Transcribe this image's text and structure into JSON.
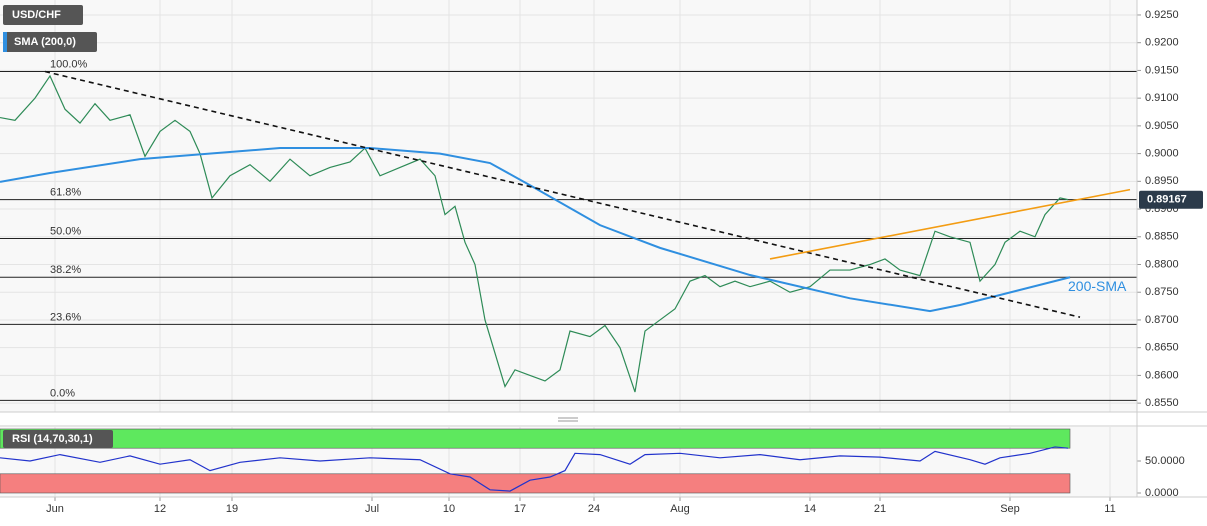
{
  "chart_data": [
    {
      "type": "line",
      "title": "USD/CHF",
      "indicator": "SMA (200,0)",
      "xlim": [
        0,
        113.7
      ],
      "ylim": [
        0.8534,
        0.9277
      ],
      "xticks": [
        {
          "value": 5.5,
          "label": "Jun"
        },
        {
          "value": 16,
          "label": "12"
        },
        {
          "value": 23.2,
          "label": "19"
        },
        {
          "value": 37.2,
          "label": "Jul"
        },
        {
          "value": 44.9,
          "label": "10"
        },
        {
          "value": 52,
          "label": "17"
        },
        {
          "value": 59.4,
          "label": "24"
        },
        {
          "value": 68,
          "label": "Aug"
        },
        {
          "value": 81,
          "label": "14"
        },
        {
          "value": 88,
          "label": "21"
        },
        {
          "value": 101,
          "label": "Sep"
        },
        {
          "value": 111,
          "label": "11"
        }
      ],
      "yticks": [
        {
          "value": 0.925,
          "label": "0.9250"
        },
        {
          "value": 0.92,
          "label": "0.9200"
        },
        {
          "value": 0.915,
          "label": "0.9150"
        },
        {
          "value": 0.91,
          "label": "0.9100"
        },
        {
          "value": 0.905,
          "label": "0.9050"
        },
        {
          "value": 0.9,
          "label": "0.9000"
        },
        {
          "value": 0.895,
          "label": "0.8950"
        },
        {
          "value": 0.89,
          "label": "0.8900"
        },
        {
          "value": 0.885,
          "label": "0.8850"
        },
        {
          "value": 0.88,
          "label": "0.8800"
        },
        {
          "value": 0.875,
          "label": "0.8750"
        },
        {
          "value": 0.87,
          "label": "0.8700"
        },
        {
          "value": 0.865,
          "label": "0.8650"
        },
        {
          "value": 0.86,
          "label": "0.8600"
        },
        {
          "value": 0.855,
          "label": "0.8550"
        }
      ],
      "grid": true,
      "series": [
        {
          "name": "USD/CHF",
          "color": "#2e8b57",
          "x": [
            0,
            1.5,
            3.5,
            5,
            6.5,
            8,
            9.5,
            11,
            13,
            14.5,
            16,
            17.5,
            19,
            20,
            21.2,
            23,
            25,
            27,
            29,
            31,
            33,
            35,
            36.5,
            38,
            40,
            42,
            43.5,
            44.5,
            45.5,
            46.5,
            47.5,
            48.5,
            49.5,
            50.5,
            51.5,
            53,
            54.5,
            56,
            57,
            59,
            60.5,
            62,
            63.5,
            64.5,
            66,
            67.5,
            69,
            70.5,
            72,
            73.5,
            75,
            77,
            79,
            81,
            83,
            85,
            87,
            88.5,
            90,
            92,
            93.5,
            95,
            97,
            98,
            99.5,
            100.5,
            102,
            103.5,
            104.5,
            106,
            106.8
          ],
          "values": [
            0.9065,
            0.906,
            0.91,
            0.914,
            0.908,
            0.9055,
            0.909,
            0.906,
            0.907,
            0.8995,
            0.904,
            0.906,
            0.904,
            0.9,
            0.892,
            0.896,
            0.898,
            0.895,
            0.899,
            0.896,
            0.8975,
            0.8985,
            0.901,
            0.896,
            0.8975,
            0.899,
            0.896,
            0.889,
            0.8905,
            0.884,
            0.88,
            0.87,
            0.864,
            0.858,
            0.861,
            0.86,
            0.859,
            0.861,
            0.868,
            0.867,
            0.869,
            0.865,
            0.857,
            0.868,
            0.87,
            0.872,
            0.877,
            0.878,
            0.876,
            0.877,
            0.876,
            0.877,
            0.875,
            0.876,
            0.879,
            0.879,
            0.88,
            0.881,
            0.879,
            0.878,
            0.886,
            0.885,
            0.884,
            0.877,
            0.88,
            0.884,
            0.886,
            0.885,
            0.889,
            0.892,
            0.8917
          ]
        },
        {
          "name": "SMA (200,0)",
          "color": "#2f8fe0",
          "x": [
            0,
            5,
            14,
            28,
            37,
            44,
            49,
            53,
            60,
            66,
            75,
            85,
            93,
            96,
            100,
            107
          ],
          "values": [
            0.8949,
            0.8965,
            0.899,
            0.901,
            0.901,
            0.9,
            0.8983,
            0.8943,
            0.8871,
            0.883,
            0.8781,
            0.8739,
            0.8716,
            0.8727,
            0.8745,
            0.8777
          ]
        }
      ],
      "levels": [
        {
          "value": 0.9148,
          "label": "100.0%"
        },
        {
          "value": 0.8917,
          "label": "61.8%"
        },
        {
          "value": 0.8847,
          "label": "50.0%"
        },
        {
          "value": 0.8777,
          "label": "38.2%"
        },
        {
          "value": 0.8692,
          "label": "23.6%"
        },
        {
          "value": 0.8555,
          "label": "0.0%"
        }
      ],
      "trendlines": [
        {
          "color": "#111111",
          "x": [
            4.5,
            108
          ],
          "values": [
            0.9148,
            0.8705
          ]
        },
        {
          "color": "#f39c12",
          "x": [
            77,
            113
          ],
          "values": [
            0.881,
            0.8935
          ]
        }
      ],
      "annotation": "200-SMA",
      "last_price": 0.89167
    },
    {
      "type": "line",
      "title": "RSI (14,70,30,1)",
      "ylim": [
        0,
        100
      ],
      "yticks": [
        {
          "value": 50,
          "label": "50.0000"
        },
        {
          "value": 0,
          "label": "0.0000"
        }
      ],
      "bands": [
        {
          "from": 70,
          "to": 100,
          "color": "#5ee85e"
        },
        {
          "from": 0,
          "to": 30,
          "color": "#f57f7f"
        }
      ],
      "series": [
        {
          "name": "RSI",
          "color": "#2233cc",
          "x": [
            0,
            3,
            6,
            10,
            13,
            16,
            19,
            21,
            24,
            28,
            32,
            37,
            42,
            45,
            47,
            49,
            51,
            53,
            55,
            56.5,
            57.5,
            60,
            63,
            64.5,
            68,
            72,
            76,
            80,
            84,
            88,
            92,
            93.5,
            97,
            98.5,
            100,
            103,
            105.5,
            106.8
          ],
          "values": [
            55,
            50,
            60,
            48,
            58,
            45,
            52,
            35,
            48,
            55,
            50,
            55,
            52,
            30,
            25,
            5,
            3,
            20,
            25,
            35,
            62,
            60,
            45,
            60,
            62,
            55,
            60,
            52,
            58,
            56,
            50,
            65,
            52,
            45,
            55,
            62,
            72,
            70
          ]
        }
      ]
    }
  ]
}
